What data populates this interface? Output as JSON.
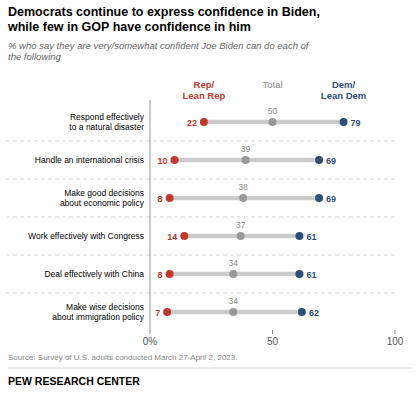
{
  "chart_data": {
    "type": "dumbbell",
    "title": "Democrats continue to express confidence in Biden,\nwhile few in GOP have confidence in him",
    "subtitle": "% who say they are very/somewhat confident Joe Biden can do each of\nthe following",
    "source": "Source: Survey of U.S. adults conducted March 27-April 2, 2023.",
    "footer": "PEW RESEARCH CENTER",
    "categories": [
      "Respond effectively\nto a natural disaster",
      "Handle an international crisis",
      "Make good decisions\nabout economic policy",
      "Work effectively with Congress",
      "Deal effectively with China",
      "Make wise decisions\nabout immigration policy"
    ],
    "series": [
      {
        "name": "Rep/\nLean Rep",
        "color": "#c0392b",
        "values": [
          22,
          10,
          8,
          14,
          8,
          7
        ]
      },
      {
        "name": "Total",
        "color": "#999999",
        "values": [
          50,
          39,
          38,
          37,
          34,
          34
        ]
      },
      {
        "name": "Dem/\nLean Dem",
        "color": "#2c4f7c",
        "values": [
          79,
          69,
          69,
          61,
          61,
          62
        ]
      }
    ],
    "color": "#cccccc",
    "xlim": [
      0,
      100
    ],
    "xticks": [
      {
        "value": 0,
        "label": "0%"
      },
      50,
      100
    ],
    "data_labels": true
  }
}
